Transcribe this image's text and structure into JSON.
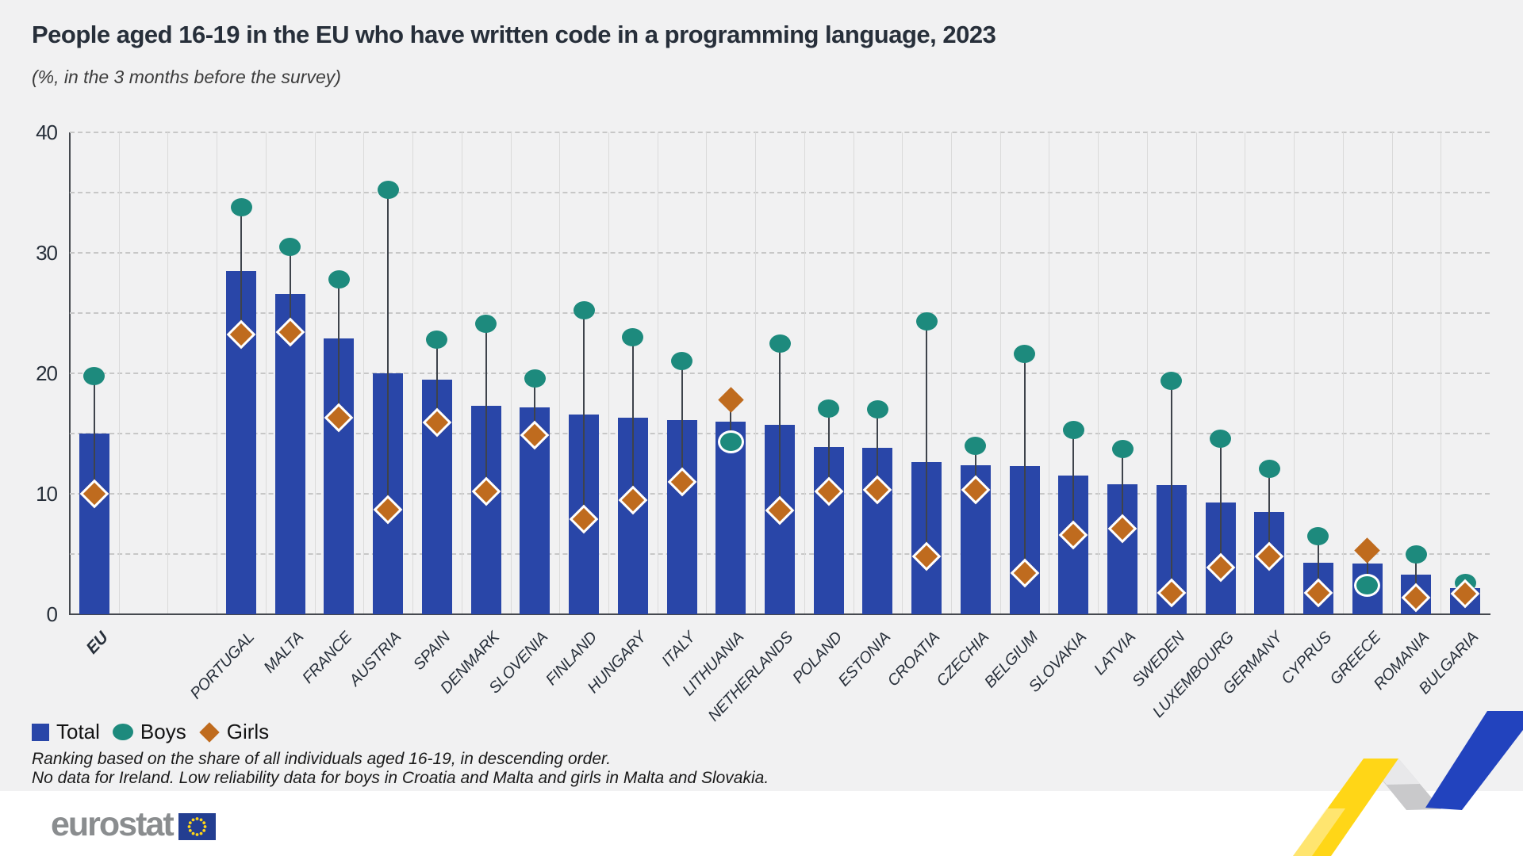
{
  "title": "People aged 16-19 in the EU who have written code in a programming language, 2023",
  "subtitle": "(%, in the 3 months before the survey)",
  "legend": {
    "total": "Total",
    "boys": "Boys",
    "girls": "Girls"
  },
  "footnotes": [
    "Ranking based on the share of all individuals aged 16-19, in descending order.",
    "No data for Ireland. Low reliability data for boys in Croatia and Malta and girls in Malta and Slovakia."
  ],
  "logo": {
    "text": "eurostat"
  },
  "colors": {
    "background": "#f1f1f2",
    "bar_total": "#2946a8",
    "boys_teal": "#1d8a7d",
    "girls_orange": "#bf6b1e",
    "axis": "#45494f",
    "grid": "#c7c7c7",
    "text_dark": "#272f3a",
    "ribbon_yellow": "#ffd617",
    "ribbon_blue": "#2243be",
    "ribbon_gray": "#c9c9cb",
    "logo_gray": "#8a8d8f",
    "flag_blue": "#233e91",
    "star_yellow": "#ffd617"
  },
  "chart_data": {
    "type": "bar",
    "title": "People aged 16-19 in the EU who have written code in a programming language, 2023",
    "xlabel": "",
    "ylabel": "%",
    "ylim": [
      0,
      40
    ],
    "yticks": [
      0,
      10,
      20,
      30,
      40
    ],
    "gridline_step": 5,
    "grid": "on",
    "legend_position": "bottom-left",
    "categories": [
      "EU",
      "PORTUGAL",
      "MALTA",
      "FRANCE",
      "AUSTRIA",
      "SPAIN",
      "DENMARK",
      "SLOVENIA",
      "FINLAND",
      "HUNGARY",
      "ITALY",
      "LITHUANIA",
      "NETHERLANDS",
      "POLAND",
      "ESTONIA",
      "CROATIA",
      "CZECHIA",
      "BELGIUM",
      "SLOVAKIA",
      "LATVIA",
      "SWEDEN",
      "LUXEMBOURG",
      "GERMANY",
      "CYPRUS",
      "GREECE",
      "ROMANIA",
      "BULGARIA"
    ],
    "series": [
      {
        "name": "Total",
        "mark": "bar",
        "values": [
          15.0,
          28.5,
          26.6,
          22.9,
          20.0,
          19.5,
          17.3,
          17.2,
          16.6,
          16.3,
          16.1,
          16.0,
          15.7,
          13.9,
          13.8,
          12.6,
          12.4,
          12.3,
          11.5,
          10.8,
          10.7,
          9.3,
          8.5,
          4.3,
          4.2,
          3.3,
          2.2
        ]
      },
      {
        "name": "Boys",
        "mark": "circle",
        "values": [
          19.8,
          33.8,
          30.5,
          27.8,
          35.2,
          22.8,
          24.1,
          19.6,
          25.2,
          23.0,
          21.0,
          14.3,
          22.5,
          17.1,
          17.0,
          24.3,
          14.0,
          21.6,
          15.3,
          13.7,
          19.4,
          14.6,
          12.1,
          6.5,
          2.4,
          5.0,
          2.6
        ]
      },
      {
        "name": "Girls",
        "mark": "diamond",
        "values": [
          10.0,
          23.2,
          23.4,
          16.3,
          8.7,
          15.9,
          10.2,
          14.9,
          7.9,
          9.5,
          11.0,
          17.8,
          8.6,
          10.2,
          10.3,
          4.8,
          10.3,
          3.4,
          6.6,
          7.1,
          1.8,
          3.9,
          4.8,
          1.8,
          5.3,
          1.4,
          1.7
        ]
      }
    ]
  }
}
